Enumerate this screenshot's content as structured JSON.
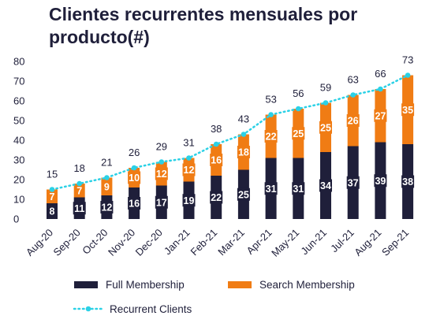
{
  "title": "Clientes recurrentes mensuales por producto(#)",
  "colors": {
    "full": "#1f1f3a",
    "search": "#f07c14",
    "line": "#2bd1e6",
    "text": "#1f1f3a"
  },
  "chart_data": {
    "type": "bar",
    "stacked": true,
    "title": "Clientes recurrentes mensuales por producto(#)",
    "xlabel": "",
    "ylabel": "",
    "ylim": [
      0,
      80
    ],
    "yticks": [
      0,
      10,
      20,
      30,
      40,
      50,
      60,
      70,
      80
    ],
    "grid": false,
    "legend": "bottom",
    "categories": [
      "Aug-20",
      "Sep-20",
      "Oct-20",
      "Nov-20",
      "Dec-20",
      "Jan-21",
      "Feb-21",
      "Mar-21",
      "Apr-21",
      "May-21",
      "Jun-21",
      "Jul-21",
      "Aug-21",
      "Sep-21"
    ],
    "series": [
      {
        "name": "Full Membership",
        "type": "bar",
        "values": [
          8,
          11,
          12,
          16,
          17,
          19,
          22,
          25,
          31,
          31,
          34,
          37,
          39,
          38
        ]
      },
      {
        "name": "Search Membership",
        "type": "bar",
        "values": [
          7,
          7,
          9,
          10,
          12,
          12,
          16,
          18,
          22,
          25,
          25,
          26,
          27,
          35
        ]
      },
      {
        "name": "Recurrent Clients",
        "type": "line",
        "style": "dotted",
        "values": [
          15,
          18,
          21,
          26,
          29,
          31,
          38,
          43,
          53,
          56,
          59,
          63,
          66,
          73
        ]
      }
    ]
  }
}
